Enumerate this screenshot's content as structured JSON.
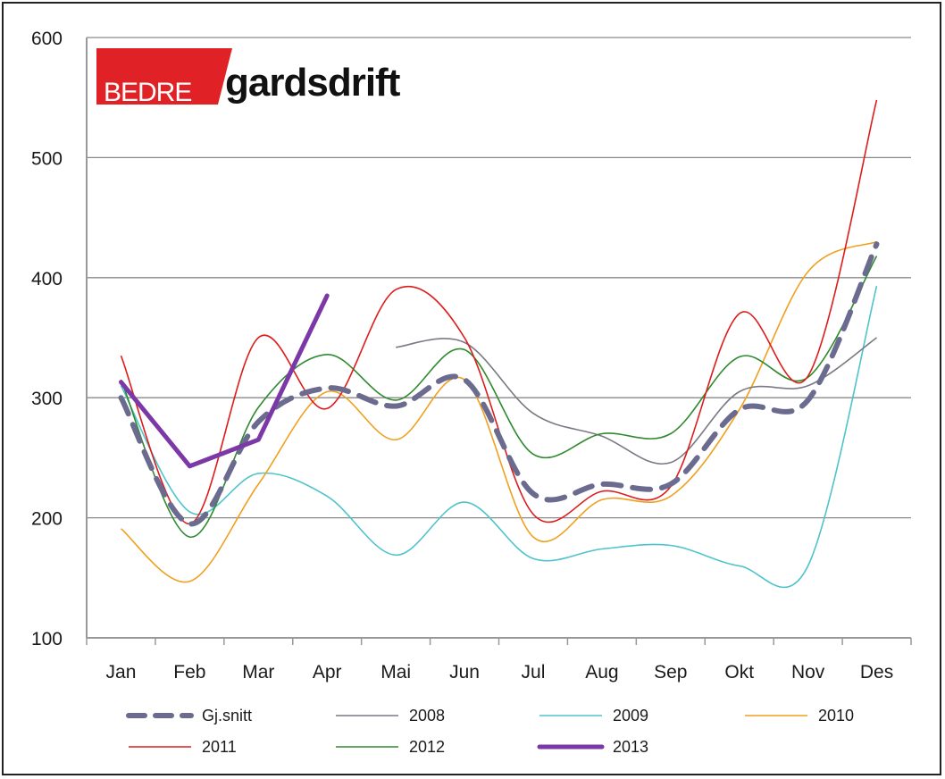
{
  "chart_data": {
    "type": "line",
    "title": "",
    "xlabel": "",
    "ylabel": "",
    "ylim": [
      100,
      600
    ],
    "yticks": [
      "100",
      "200",
      "300",
      "400",
      "500",
      "600"
    ],
    "categories": [
      "Jan",
      "Feb",
      "Mar",
      "Apr",
      "Mai",
      "Jun",
      "Jul",
      "Aug",
      "Sep",
      "Okt",
      "Nov",
      "Des"
    ],
    "grid": true,
    "legend": "bottom",
    "series": [
      {
        "name": "Gj.snitt",
        "color": "#6b6b8f",
        "style": "dashed",
        "values": [
          300,
          195,
          280,
          308,
          293,
          315,
          220,
          228,
          228,
          290,
          298,
          428
        ]
      },
      {
        "name": "2008",
        "color": "#7a7a85",
        "style": "thin",
        "values": [
          null,
          null,
          null,
          null,
          342,
          346,
          287,
          268,
          246,
          305,
          310,
          350
        ]
      },
      {
        "name": "2009",
        "color": "#4ec3cc",
        "style": "thin",
        "values": [
          310,
          205,
          237,
          218,
          169,
          213,
          166,
          174,
          177,
          160,
          160,
          393
        ]
      },
      {
        "name": "2010",
        "color": "#f0a020",
        "style": "thin",
        "values": [
          191,
          147,
          228,
          305,
          265,
          315,
          184,
          215,
          218,
          290,
          405,
          430
        ]
      },
      {
        "name": "2011",
        "color": "#dd1c1c",
        "style": "thin",
        "values": [
          335,
          195,
          350,
          291,
          390,
          350,
          203,
          222,
          226,
          370,
          318,
          548
        ]
      },
      {
        "name": "2012",
        "color": "#2f8a2f",
        "style": "thin",
        "values": [
          315,
          184,
          292,
          336,
          298,
          340,
          253,
          270,
          270,
          334,
          317,
          418
        ]
      },
      {
        "name": "2013",
        "color": "#7b38a6",
        "style": "bold",
        "values": [
          313,
          243,
          265,
          385,
          null,
          null,
          null,
          null,
          null,
          null,
          null,
          null
        ]
      }
    ]
  },
  "logo": {
    "red_text": "BEDRE",
    "black_text": "gardsdrift"
  }
}
